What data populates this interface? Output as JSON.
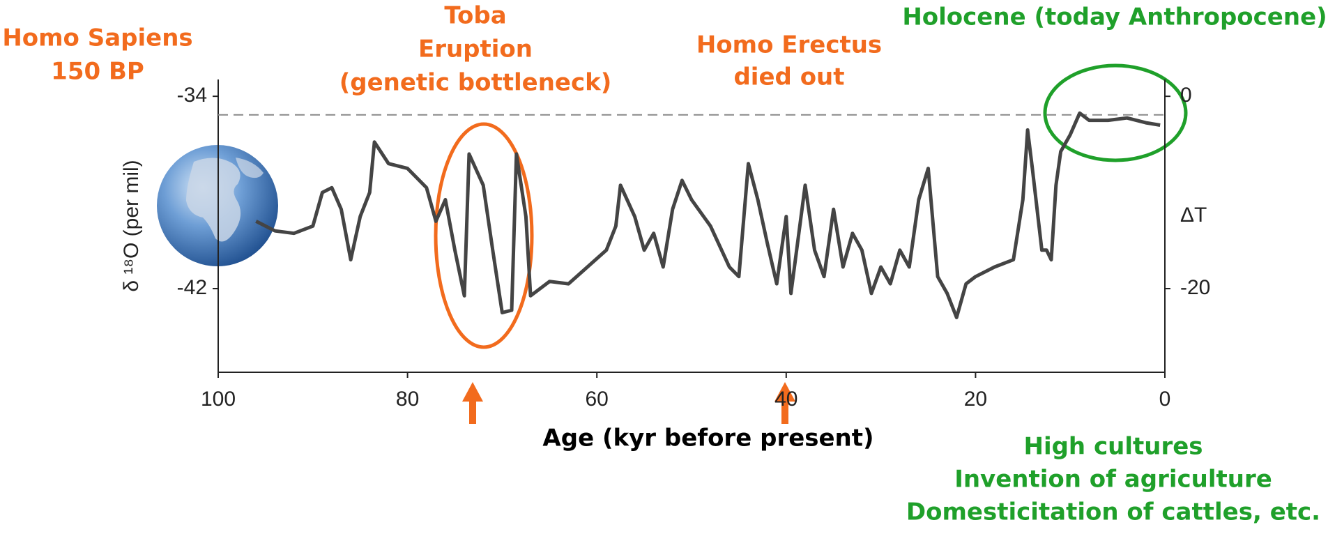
{
  "chart_data": {
    "type": "line",
    "xlabel": "Age (kyr before present)",
    "ylabel": "δ ¹⁸O (per mil)",
    "y2label": "ΔT",
    "xlim": [
      100,
      0
    ],
    "xticks": [
      100,
      80,
      60,
      40,
      20,
      0
    ],
    "ylim": [
      -45.48,
      -33.3
    ],
    "yticks": [
      -34,
      -42
    ],
    "y2lim": [
      -28.7,
      1.75
    ],
    "y2ticks": [
      0,
      -20
    ],
    "reference_line": -34.77,
    "series": [
      {
        "color": "#444444",
        "x": [
          96,
          95,
          94,
          92,
          90,
          89,
          88,
          87,
          86,
          85,
          84,
          83.5,
          82,
          80,
          78,
          77,
          76,
          75,
          74,
          73.5,
          72,
          71,
          70,
          69,
          68.5,
          67.5,
          67,
          65,
          63,
          61,
          59,
          58,
          57.5,
          56,
          55,
          54,
          53,
          52,
          51,
          50,
          48,
          46,
          45,
          44,
          43,
          42,
          41,
          40,
          39.5,
          38,
          37,
          36,
          35,
          34,
          33,
          32,
          31,
          30,
          29,
          28,
          27,
          26,
          25,
          24,
          23,
          22,
          21,
          20,
          18,
          16,
          15,
          14.5,
          14,
          13,
          12.5,
          12,
          11.5,
          11,
          10,
          9,
          8,
          6,
          4,
          2,
          0.5
        ],
        "values": [
          -39.2,
          -39.4,
          -39.6,
          -39.7,
          -39.4,
          -38.0,
          -37.8,
          -38.7,
          -40.8,
          -39.0,
          -38.0,
          -35.9,
          -36.8,
          -37.0,
          -37.8,
          -39.2,
          -38.3,
          -40.4,
          -42.3,
          -36.4,
          -37.7,
          -40.4,
          -43.0,
          -42.9,
          -36.4,
          -39.0,
          -42.3,
          -41.7,
          -41.8,
          -41.1,
          -40.4,
          -39.4,
          -37.7,
          -39.0,
          -40.4,
          -39.7,
          -41.1,
          -38.7,
          -37.5,
          -38.3,
          -39.4,
          -41.1,
          -41.5,
          -36.8,
          -38.3,
          -40.1,
          -41.8,
          -39.0,
          -42.2,
          -37.7,
          -40.4,
          -41.5,
          -38.7,
          -41.1,
          -39.7,
          -40.4,
          -42.2,
          -41.1,
          -41.8,
          -40.4,
          -41.1,
          -38.3,
          -37.0,
          -41.5,
          -42.2,
          -43.2,
          -41.8,
          -41.5,
          -41.1,
          -40.8,
          -38.3,
          -35.4,
          -37.0,
          -40.4,
          -40.4,
          -40.8,
          -37.7,
          -36.3,
          -35.6,
          -34.7,
          -35.0,
          -35.0,
          -34.9,
          -35.1,
          -35.2
        ]
      }
    ],
    "annotations": [
      {
        "lines": [
          "Homo Sapiens",
          "150 BP"
        ],
        "color": "#f26b1d"
      },
      {
        "lines": [
          "Toba",
          "Eruption",
          "(genetic bottleneck)"
        ],
        "color": "#f26b1d"
      },
      {
        "lines": [
          "Homo Erectus",
          "died out"
        ],
        "color": "#f26b1d"
      },
      {
        "lines": [
          "Holocene (today Anthropocene)"
        ],
        "color": "#1fa02a"
      },
      {
        "lines": [
          "High cultures",
          "Invention of agriculture",
          "Domesticitation of cattles, etc."
        ],
        "color": "#1fa02a"
      }
    ]
  }
}
